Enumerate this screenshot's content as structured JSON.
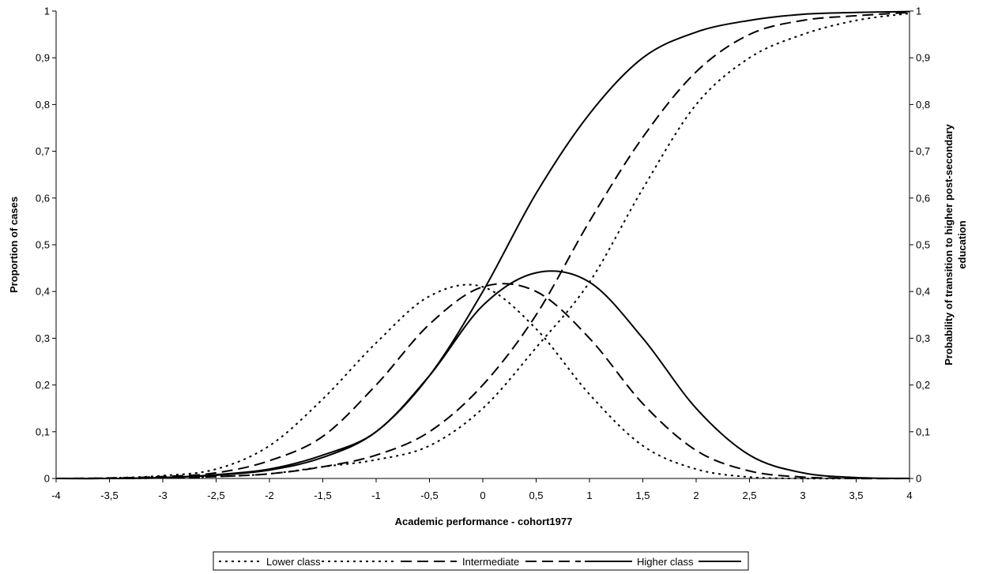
{
  "chart_data": {
    "type": "line",
    "xlabel": "Academic performance - cohort1977",
    "ylabel_left": "Proportion of cases",
    "ylabel_right_lines": [
      "Probability of transition to higher post-secondary",
      "education"
    ],
    "xlim": [
      -4,
      4
    ],
    "ylim_left": [
      0,
      1
    ],
    "ylim_right": [
      0,
      1
    ],
    "x_ticks": [
      "-4",
      "-3,5",
      "-3",
      "-2,5",
      "-2",
      "-1,5",
      "-1",
      "-0,5",
      "0",
      "0,5",
      "1",
      "1,5",
      "2",
      "2,5",
      "3",
      "3,5",
      "4"
    ],
    "y_ticks_left": [
      "0",
      "0,1",
      "0,2",
      "0,3",
      "0,4",
      "0,5",
      "0,6",
      "0,7",
      "0,8",
      "0,9",
      "1"
    ],
    "y_ticks_right": [
      "0",
      "0,1",
      "0,2",
      "0,3",
      "0,4",
      "0,5",
      "0,6",
      "0,7",
      "0,8",
      "0,9",
      "1"
    ],
    "grid": false,
    "legend_position": "bottom",
    "x": [
      -4,
      -3.5,
      -3,
      -2.5,
      -2,
      -1.5,
      -1,
      -0.5,
      0,
      0.5,
      1,
      1.5,
      2,
      2.5,
      3,
      3.5,
      4
    ],
    "series": [
      {
        "name": "Lower class",
        "kind": "distribution",
        "dash": "dotted",
        "values": [
          0.0,
          0.001,
          0.006,
          0.02,
          0.07,
          0.17,
          0.29,
          0.39,
          0.41,
          0.32,
          0.18,
          0.07,
          0.02,
          0.003,
          0.0,
          0.0,
          0.0
        ]
      },
      {
        "name": "Intermediate",
        "kind": "distribution",
        "dash": "dashed",
        "values": [
          0.0,
          0.001,
          0.004,
          0.012,
          0.038,
          0.09,
          0.2,
          0.33,
          0.41,
          0.4,
          0.3,
          0.16,
          0.06,
          0.016,
          0.003,
          0.0,
          0.0
        ]
      },
      {
        "name": "Higher class",
        "kind": "distribution",
        "dash": "solid",
        "values": [
          0.0,
          0.0,
          0.002,
          0.008,
          0.02,
          0.05,
          0.1,
          0.22,
          0.37,
          0.44,
          0.42,
          0.3,
          0.15,
          0.05,
          0.012,
          0.002,
          0.0
        ]
      },
      {
        "name": "Lower class",
        "kind": "transition",
        "dash": "dotted",
        "values": [
          0.0,
          0.0,
          0.001,
          0.004,
          0.01,
          0.025,
          0.04,
          0.07,
          0.15,
          0.28,
          0.42,
          0.62,
          0.8,
          0.9,
          0.95,
          0.98,
          0.995
        ]
      },
      {
        "name": "Intermediate",
        "kind": "transition",
        "dash": "dashed",
        "values": [
          0.0,
          0.0,
          0.001,
          0.004,
          0.01,
          0.025,
          0.05,
          0.1,
          0.2,
          0.35,
          0.55,
          0.73,
          0.87,
          0.95,
          0.98,
          0.99,
          0.997
        ]
      },
      {
        "name": "Higher class",
        "kind": "transition",
        "dash": "solid",
        "values": [
          0.0,
          0.0,
          0.002,
          0.007,
          0.018,
          0.045,
          0.1,
          0.22,
          0.4,
          0.61,
          0.78,
          0.9,
          0.955,
          0.98,
          0.993,
          0.997,
          0.999
        ]
      }
    ],
    "legend": [
      {
        "label": "Lower class",
        "dash": "dotted"
      },
      {
        "label": "Intermediate",
        "dash": "dashed"
      },
      {
        "label": "Higher class",
        "dash": "solid"
      }
    ],
    "colors": {
      "line": "#000000",
      "background": "#ffffff"
    }
  }
}
